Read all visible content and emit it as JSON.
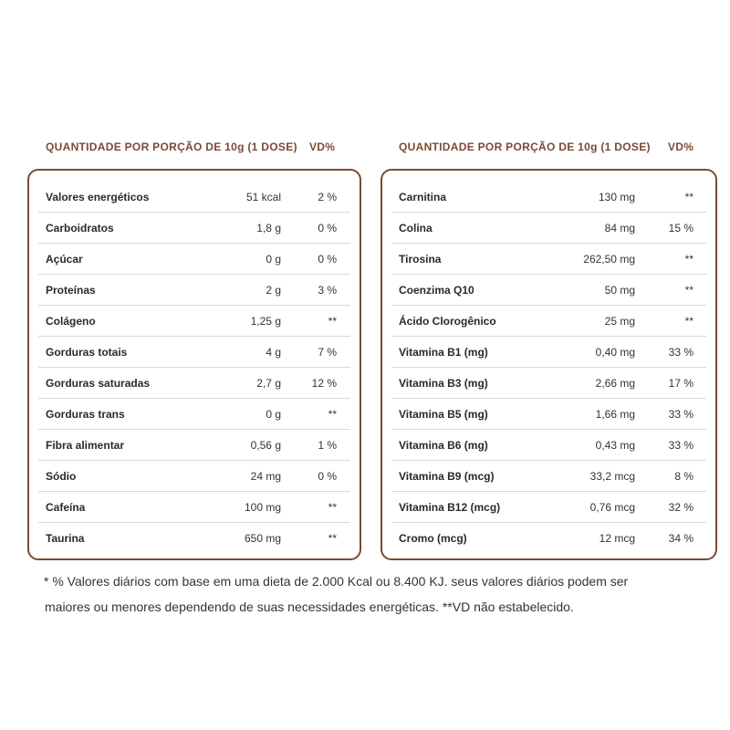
{
  "left": {
    "header": "QUANTIDADE POR PORÇÃO DE 10g (1 DOSE)",
    "vd_header": "VD%",
    "rows": [
      {
        "name": "Valores energéticos",
        "qty": "51 kcal",
        "vd": "2 %"
      },
      {
        "name": "Carboidratos",
        "qty": "1,8 g",
        "vd": "0 %"
      },
      {
        "name": "Açúcar",
        "qty": "0 g",
        "vd": "0 %"
      },
      {
        "name": "Proteínas",
        "qty": "2 g",
        "vd": "3 %"
      },
      {
        "name": "Colágeno",
        "qty": "1,25 g",
        "vd": "**"
      },
      {
        "name": "Gorduras totais",
        "qty": "4 g",
        "vd": "7 %"
      },
      {
        "name": "Gorduras saturadas",
        "qty": "2,7 g",
        "vd": "12 %"
      },
      {
        "name": "Gorduras trans",
        "qty": "0 g",
        "vd": "**"
      },
      {
        "name": "Fibra alimentar",
        "qty": "0,56 g",
        "vd": "1 %"
      },
      {
        "name": "Sódio",
        "qty": "24 mg",
        "vd": "0 %"
      },
      {
        "name": "Cafeína",
        "qty": "100 mg",
        "vd": "**"
      },
      {
        "name": "Taurina",
        "qty": "650 mg",
        "vd": "**"
      }
    ]
  },
  "right": {
    "header": "QUANTIDADE POR PORÇÃO DE 10g (1 DOSE)",
    "vd_header": "VD%",
    "rows": [
      {
        "name": "Carnitina",
        "qty": "130 mg",
        "vd": "**"
      },
      {
        "name": "Colina",
        "qty": "84 mg",
        "vd": "15 %"
      },
      {
        "name": "Tirosina",
        "qty": "262,50 mg",
        "vd": "**"
      },
      {
        "name": "Coenzima Q10",
        "qty": "50 mg",
        "vd": "**"
      },
      {
        "name": "Ácido Clorogênico",
        "qty": "25 mg",
        "vd": "**"
      },
      {
        "name": "Vitamina B1 (mg)",
        "qty": "0,40 mg",
        "vd": "33 %"
      },
      {
        "name": "Vitamina B3 (mg)",
        "qty": "2,66 mg",
        "vd": "17 %"
      },
      {
        "name": "Vitamina B5 (mg)",
        "qty": "1,66 mg",
        "vd": "33 %"
      },
      {
        "name": "Vitamina B6 (mg)",
        "qty": "0,43 mg",
        "vd": "33 %"
      },
      {
        "name": "Vitamina B9 (mcg)",
        "qty": "33,2 mcg",
        "vd": "8 %"
      },
      {
        "name": "Vitamina B12 (mcg)",
        "qty": "0,76 mcg",
        "vd": "32 %"
      },
      {
        "name": "Cromo (mcg)",
        "qty": "12 mcg",
        "vd": "34 %"
      }
    ]
  },
  "footnote": {
    "line1": "* % Valores diários com base em uma dieta de 2.000 Kcal ou 8.400 KJ. seus valores diários podem ser",
    "line2": "maiores ou menores dependendo de suas necessidades energéticas. **VD não estabelecido."
  },
  "colors": {
    "accent": "#7a4a33",
    "divider": "#d9d9d9"
  }
}
